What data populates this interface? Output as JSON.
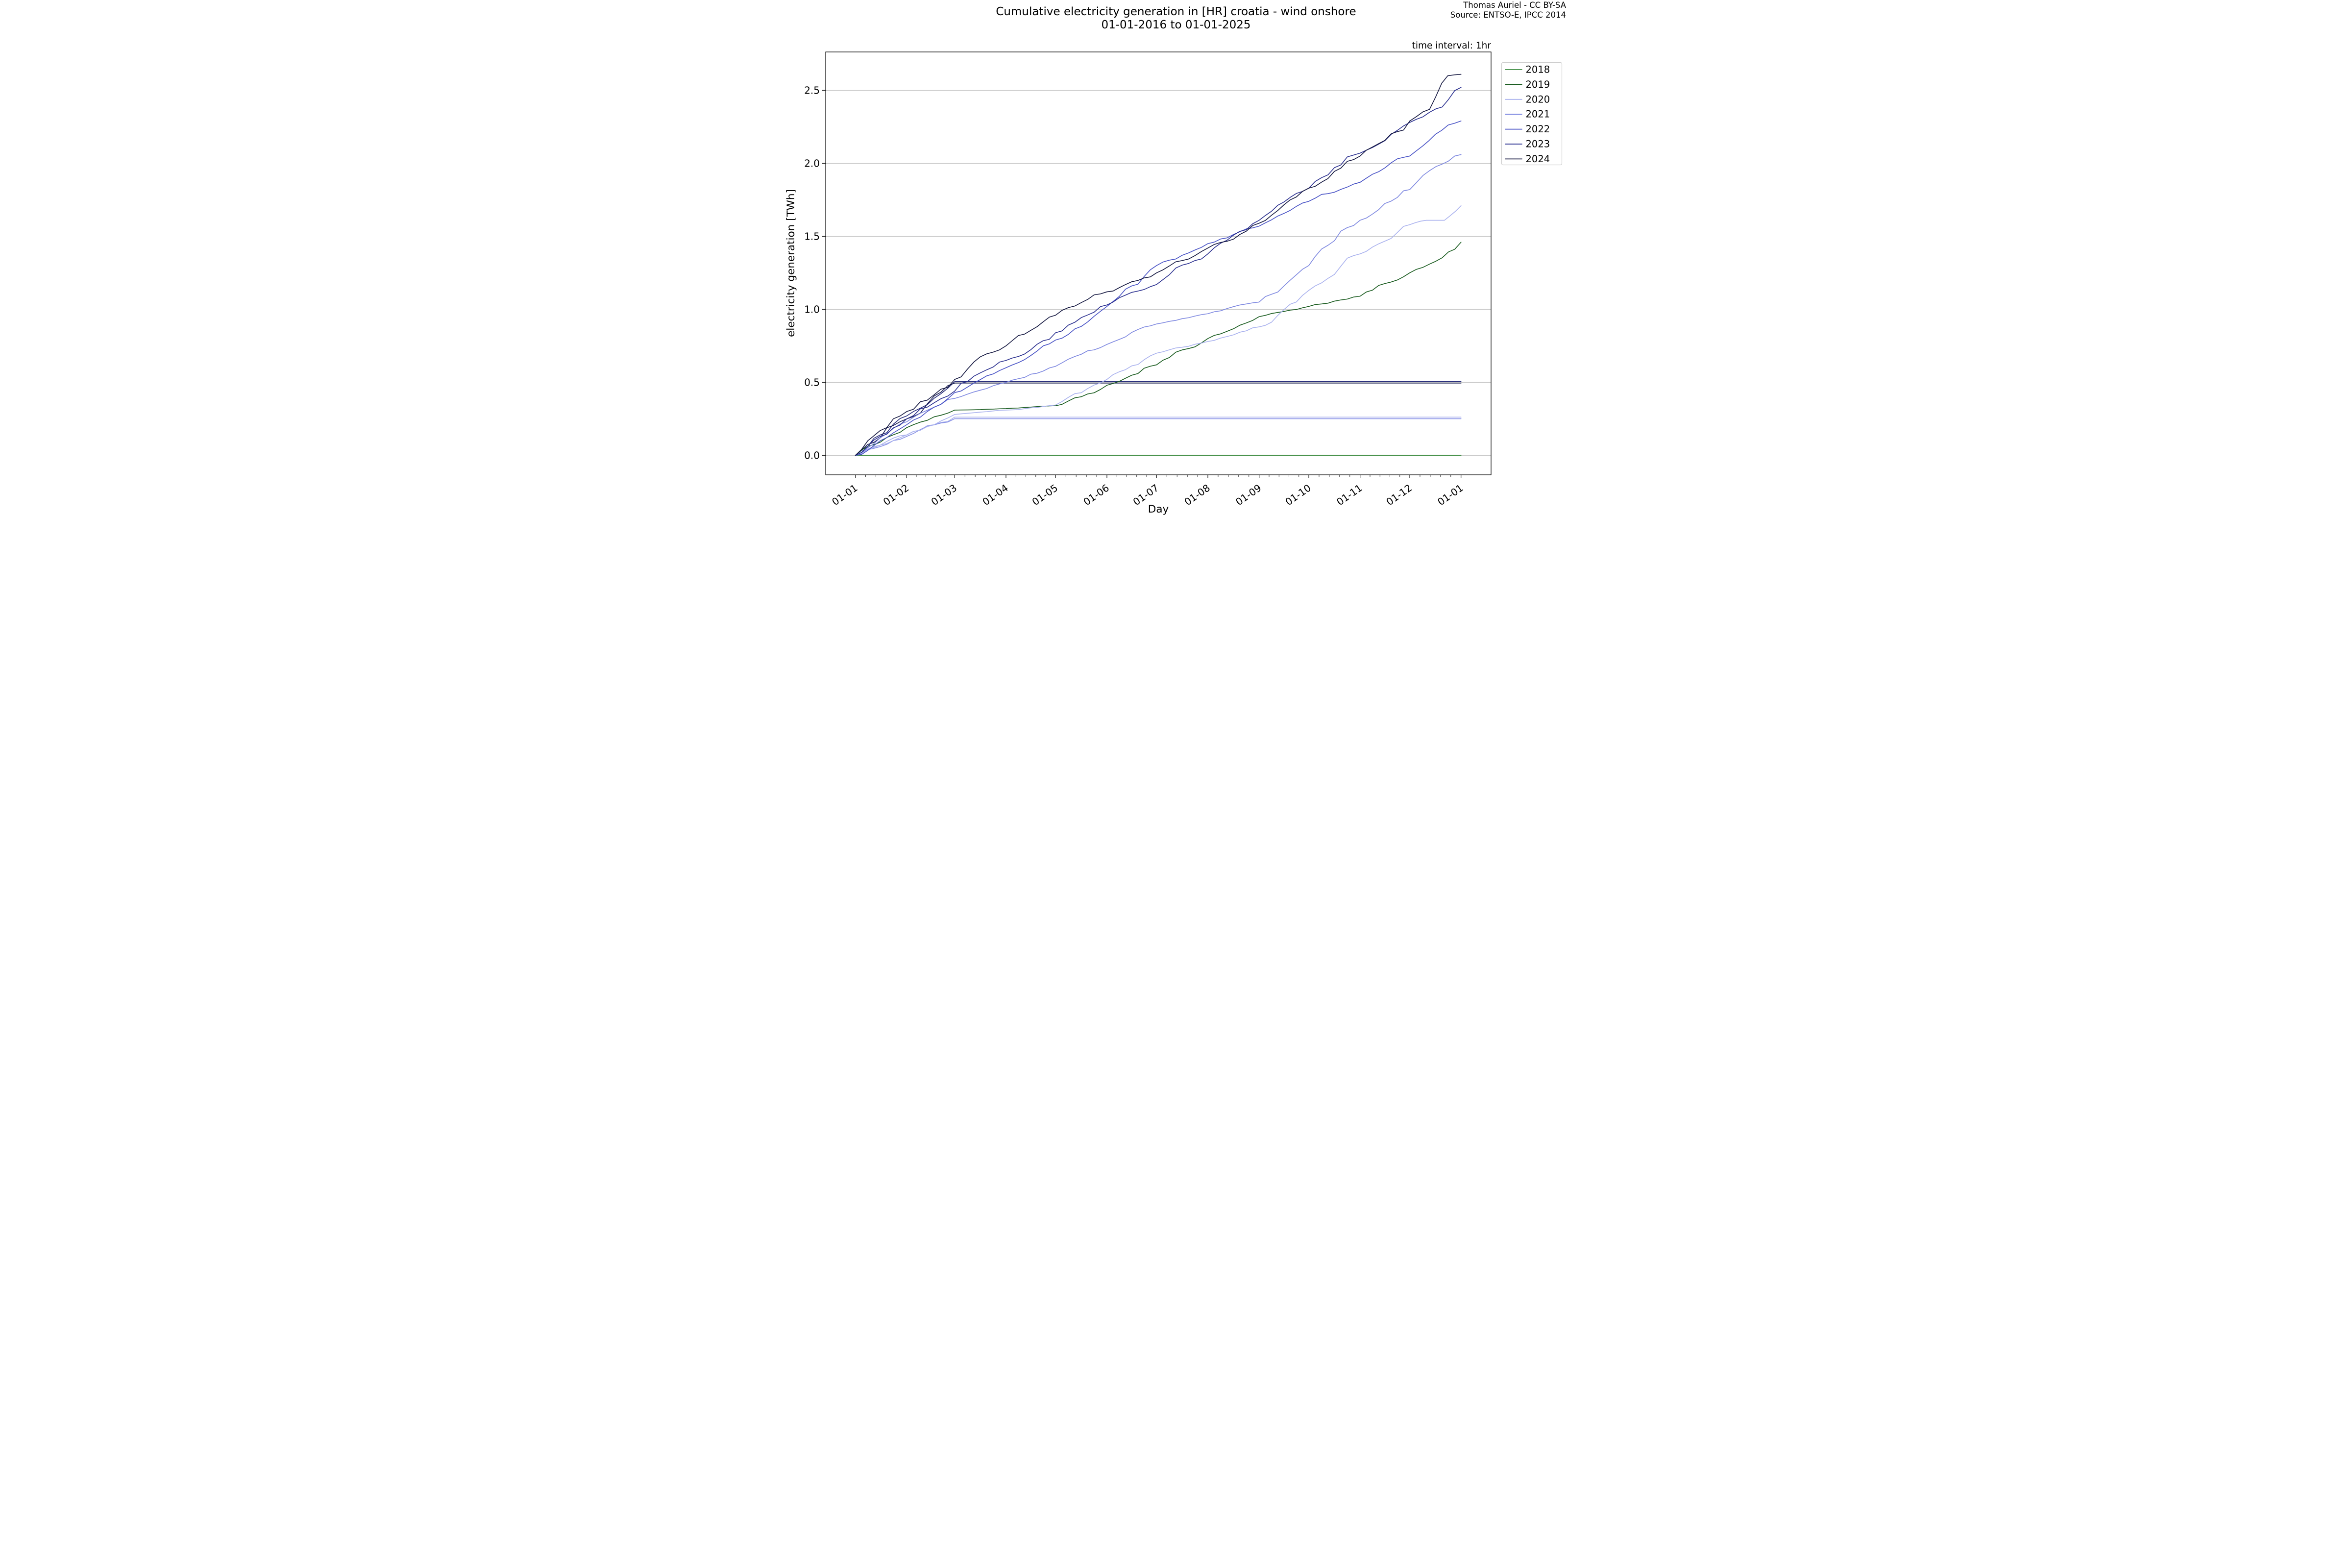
{
  "header": {
    "title_line1": "Cumulative electricity generation in [HR] croatia - wind onshore",
    "title_line2": "01-01-2016 to 01-01-2025",
    "attribution_line1": "Thomas Auriel - CC BY-SA",
    "attribution_line2": "Source: ENTSO-E, IPCC 2014",
    "time_interval": "time interval: 1hr"
  },
  "chart_data": {
    "type": "line",
    "title": "Cumulative electricity generation in [HR] croatia - wind onshore 01-01-2016 to 01-01-2025",
    "xlabel": "Day",
    "ylabel": "electricity generation [TWh]",
    "x_tick_labels": [
      "01-01",
      "01-02",
      "01-03",
      "01-04",
      "01-05",
      "01-06",
      "01-07",
      "01-08",
      "01-09",
      "01-10",
      "01-11",
      "01-12",
      "01-01"
    ],
    "x_tick_days": [
      0,
      31,
      60,
      91,
      121,
      152,
      182,
      213,
      244,
      274,
      305,
      335,
      366
    ],
    "y_tick_labels": [
      "0.0",
      "0.5",
      "1.0",
      "1.5",
      "2.0",
      "2.5"
    ],
    "y_tick_values": [
      0,
      0.5,
      1.0,
      1.5,
      2.0,
      2.5
    ],
    "ylim": [
      -0.133,
      2.763
    ],
    "x_range_days": [
      0,
      366
    ],
    "grid": "horizontal",
    "gridline_color": "#b3b3b3",
    "legend_position": "upper right, outside axes",
    "legend_labels": [
      "2018",
      "2019",
      "2020",
      "2021",
      "2022",
      "2023",
      "2024"
    ],
    "series": [
      {
        "label": "2018",
        "color": "#3a8a3e",
        "final_twh": 0.0,
        "anchors": [
          [
            0,
            0
          ],
          [
            366,
            0
          ]
        ]
      },
      {
        "label": "2019",
        "color": "#175a1d",
        "final_twh": 1.46,
        "anchors": [
          [
            0,
            0
          ],
          [
            15,
            0.09
          ],
          [
            31,
            0.19
          ],
          [
            60,
            0.31
          ],
          [
            91,
            0.32
          ],
          [
            121,
            0.34
          ],
          [
            152,
            0.48
          ],
          [
            182,
            0.62
          ],
          [
            213,
            0.8
          ],
          [
            244,
            0.95
          ],
          [
            274,
            1.02
          ],
          [
            305,
            1.09
          ],
          [
            335,
            1.25
          ],
          [
            347,
            1.31
          ],
          [
            366,
            1.46
          ]
        ]
      },
      {
        "label": "2020",
        "color": "#aab2ee",
        "final_twh": 1.71,
        "anchors": [
          [
            0,
            0
          ],
          [
            15,
            0.07
          ],
          [
            31,
            0.14
          ],
          [
            60,
            0.28
          ],
          [
            91,
            0.31
          ],
          [
            121,
            0.345
          ],
          [
            152,
            0.52
          ],
          [
            182,
            0.7
          ],
          [
            213,
            0.78
          ],
          [
            244,
            0.88
          ],
          [
            274,
            1.13
          ],
          [
            305,
            1.38
          ],
          [
            335,
            1.58
          ],
          [
            345,
            1.61
          ],
          [
            356,
            1.61
          ],
          [
            366,
            1.71
          ]
        ]
      },
      {
        "label": "2021",
        "color": "#7e88e0",
        "final_twh": 2.06,
        "anchors": [
          [
            0,
            0
          ],
          [
            15,
            0.12
          ],
          [
            31,
            0.23
          ],
          [
            60,
            0.39
          ],
          [
            91,
            0.5
          ],
          [
            121,
            0.61
          ],
          [
            152,
            0.76
          ],
          [
            182,
            0.9
          ],
          [
            213,
            0.97
          ],
          [
            244,
            1.05
          ],
          [
            274,
            1.3
          ],
          [
            305,
            1.61
          ],
          [
            335,
            1.82
          ],
          [
            347,
            1.95
          ],
          [
            366,
            2.06
          ]
        ]
      },
      {
        "label": "2022",
        "color": "#4751c5",
        "final_twh": 2.29,
        "anchors": [
          [
            0,
            0
          ],
          [
            15,
            0.1
          ],
          [
            31,
            0.21
          ],
          [
            60,
            0.43
          ],
          [
            91,
            0.6
          ],
          [
            121,
            0.79
          ],
          [
            152,
            1.02
          ],
          [
            182,
            1.3
          ],
          [
            213,
            1.45
          ],
          [
            244,
            1.57
          ],
          [
            274,
            1.74
          ],
          [
            305,
            1.87
          ],
          [
            335,
            2.05
          ],
          [
            366,
            2.29
          ]
        ]
      },
      {
        "label": "2023",
        "color": "#2a2f8f",
        "final_twh": 2.52,
        "anchors": [
          [
            0,
            0
          ],
          [
            15,
            0.13
          ],
          [
            31,
            0.25
          ],
          [
            60,
            0.44
          ],
          [
            91,
            0.65
          ],
          [
            121,
            0.84
          ],
          [
            152,
            1.03
          ],
          [
            182,
            1.17
          ],
          [
            213,
            1.38
          ],
          [
            244,
            1.61
          ],
          [
            274,
            1.83
          ],
          [
            305,
            2.07
          ],
          [
            335,
            2.28
          ],
          [
            347,
            2.35
          ],
          [
            366,
            2.52
          ]
        ]
      },
      {
        "label": "2024",
        "color": "#141740",
        "final_twh": 2.61,
        "anchors": [
          [
            0,
            0
          ],
          [
            15,
            0.17
          ],
          [
            31,
            0.3
          ],
          [
            60,
            0.52
          ],
          [
            91,
            0.75
          ],
          [
            121,
            0.96
          ],
          [
            152,
            1.12
          ],
          [
            182,
            1.25
          ],
          [
            213,
            1.42
          ],
          [
            244,
            1.59
          ],
          [
            274,
            1.83
          ],
          [
            305,
            2.05
          ],
          [
            335,
            2.29
          ],
          [
            347,
            2.37
          ],
          [
            358,
            2.6
          ],
          [
            366,
            2.61
          ]
        ]
      }
    ],
    "unlabeled_partial_series": [
      {
        "label": "",
        "color": "#262b7a",
        "flat_value_twh": 0.505,
        "flat_from_day": 60,
        "anchors": [
          [
            0,
            0
          ],
          [
            15,
            0.14
          ],
          [
            31,
            0.27
          ],
          [
            60,
            0.505
          ],
          [
            366,
            0.505
          ]
        ]
      },
      {
        "label": "",
        "color": "#161a4e",
        "flat_value_twh": 0.495,
        "flat_from_day": 60,
        "anchors": [
          [
            0,
            0
          ],
          [
            15,
            0.12
          ],
          [
            31,
            0.25
          ],
          [
            60,
            0.495
          ],
          [
            366,
            0.495
          ]
        ]
      },
      {
        "label": "",
        "color": "#a9b1ec",
        "flat_value_twh": 0.262,
        "flat_from_day": 60,
        "anchors": [
          [
            0,
            0
          ],
          [
            15,
            0.07
          ],
          [
            31,
            0.14
          ],
          [
            60,
            0.262
          ],
          [
            366,
            0.262
          ]
        ]
      },
      {
        "label": "",
        "color": "#8992e6",
        "flat_value_twh": 0.251,
        "flat_from_day": 60,
        "anchors": [
          [
            0,
            0
          ],
          [
            15,
            0.06
          ],
          [
            31,
            0.13
          ],
          [
            60,
            0.251
          ],
          [
            366,
            0.251
          ]
        ]
      }
    ]
  }
}
